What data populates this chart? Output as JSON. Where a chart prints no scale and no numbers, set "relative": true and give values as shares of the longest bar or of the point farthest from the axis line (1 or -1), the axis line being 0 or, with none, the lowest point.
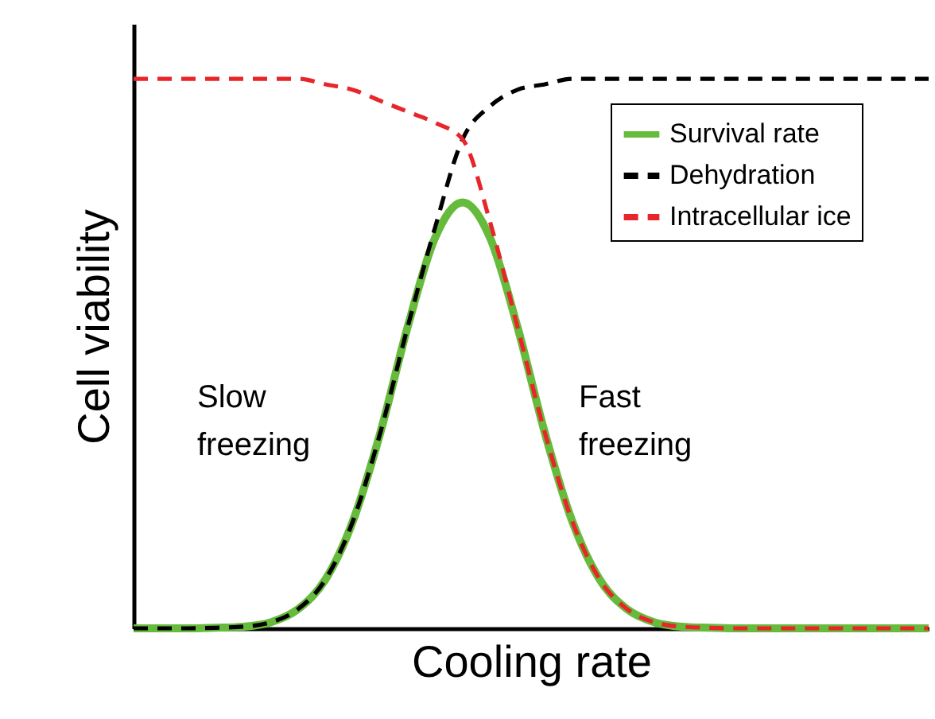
{
  "chart_data": {
    "type": "line",
    "xlabel": "Cooling rate",
    "ylabel": "Cell viability",
    "relative": true,
    "legend": "top right",
    "grid": false,
    "marker": "none",
    "categories": [
      null,
      null,
      null,
      null,
      null,
      null,
      null,
      null,
      null,
      null,
      null,
      null,
      null,
      null,
      null,
      null,
      null,
      null,
      null,
      null,
      null,
      null,
      null,
      null,
      null,
      null,
      null,
      null,
      null,
      null
    ],
    "series": [
      {
        "name": "Survival rate",
        "color": "#66bb3c",
        "line_style": "solid",
        "values": [
          0,
          0,
          0,
          0.001,
          0.003,
          0.011,
          0.035,
          0.089,
          0.195,
          0.356,
          0.549,
          0.711,
          0.775,
          0.711,
          0.549,
          0.356,
          0.195,
          0.089,
          0.035,
          0.011,
          0.003,
          0.001,
          0,
          0,
          0,
          0,
          0,
          0,
          0,
          0
        ]
      },
      {
        "name": "Dehydration",
        "color": "#000000",
        "line_style": "dashed",
        "values": [
          0,
          0,
          0,
          0.001,
          0.003,
          0.011,
          0.035,
          0.089,
          0.195,
          0.356,
          0.549,
          0.73,
          0.89,
          0.95,
          0.98,
          0.99,
          1,
          1,
          1,
          1,
          1,
          1,
          1,
          1,
          1,
          1,
          1,
          1,
          1,
          1
        ]
      },
      {
        "name": "Intracellular ice",
        "color": "#e8262a",
        "line_style": "dashed",
        "values": [
          1,
          1,
          1,
          1,
          1,
          1,
          1,
          0.99,
          0.98,
          0.96,
          0.94,
          0.92,
          0.89,
          0.74,
          0.549,
          0.356,
          0.195,
          0.089,
          0.035,
          0.011,
          0.003,
          0.001,
          0,
          0,
          0,
          0,
          0,
          0,
          0,
          0
        ]
      }
    ],
    "annotations": [
      "Slow freezing",
      "Fast freezing"
    ]
  }
}
